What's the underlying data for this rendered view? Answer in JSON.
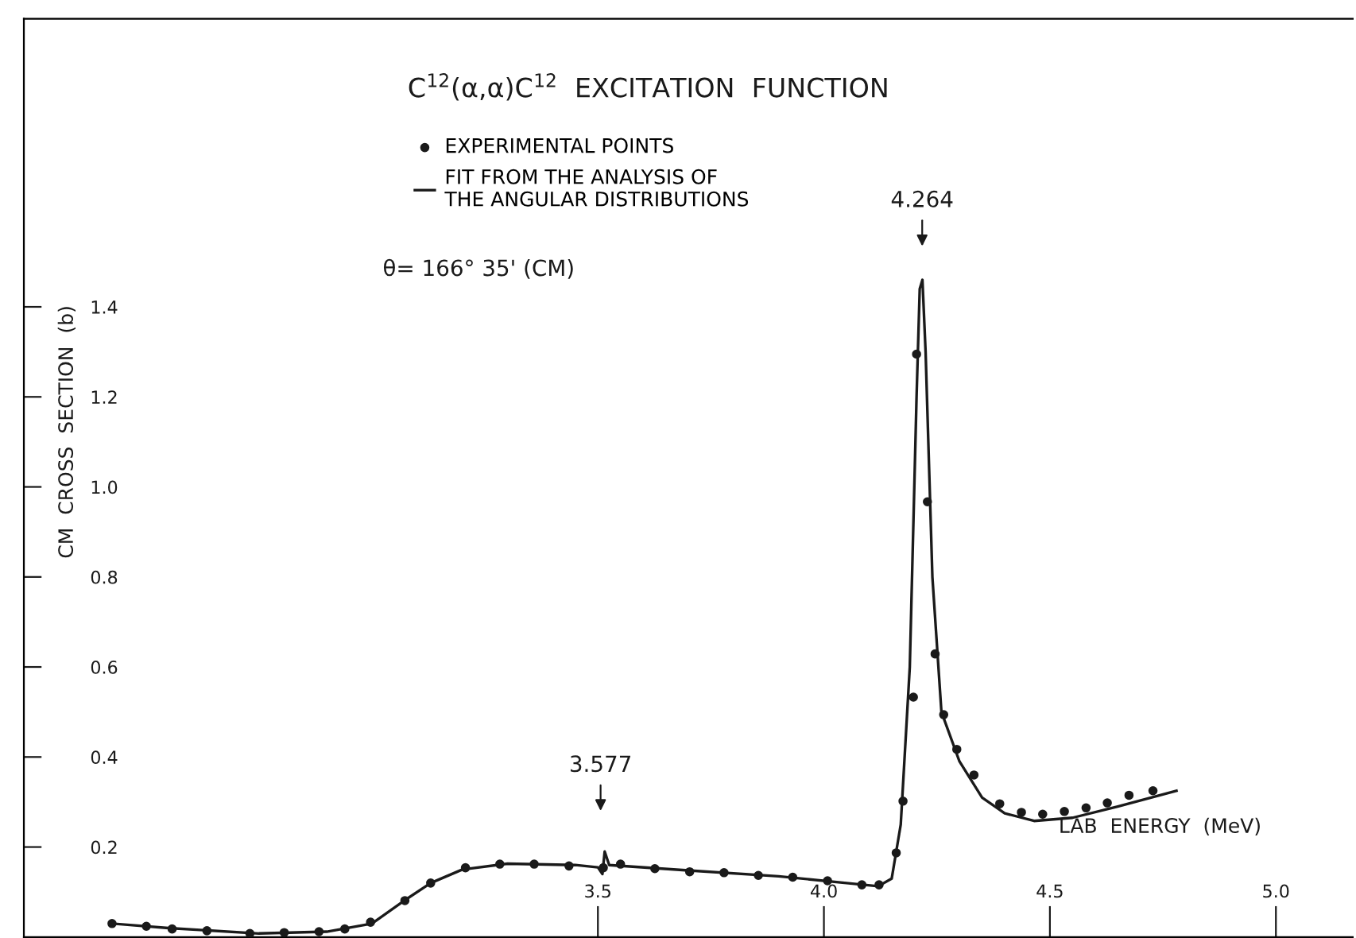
{
  "chart_data": {
    "type": "scatter",
    "title": "C$^{12}$(α,α)C$^{12}$  EXCITATION  FUNCTION",
    "xlabel": "LAB  ENERGY  (MeV)",
    "ylabel": "CM  CROSS  SECTION  (b)",
    "annotations": [
      "θ= 166° 35' (CM)",
      "3.577",
      "4.264"
    ],
    "series": [
      {
        "name": "EXPERIMENTAL POINTS",
        "marker": "circle",
        "color": "#1a1a1a",
        "x": [
          2.425,
          2.501,
          2.558,
          2.635,
          2.73,
          2.806,
          2.883,
          2.94,
          2.997,
          3.073,
          3.13,
          3.207,
          3.283,
          3.359,
          3.436,
          3.512,
          3.55,
          3.626,
          3.703,
          3.779,
          3.855,
          3.931,
          4.008,
          4.084,
          4.122,
          4.16,
          4.175,
          4.198,
          4.205,
          4.229,
          4.246,
          4.265,
          4.294,
          4.332,
          4.389,
          4.437,
          4.484,
          4.532,
          4.58,
          4.627,
          4.675,
          4.728
        ],
        "values": [
          0.03,
          0.024,
          0.018,
          0.014,
          0.008,
          0.01,
          0.012,
          0.018,
          0.033,
          0.081,
          0.12,
          0.154,
          0.162,
          0.162,
          0.158,
          0.154,
          0.162,
          0.152,
          0.145,
          0.143,
          0.137,
          0.133,
          0.125,
          0.116,
          0.116,
          0.187,
          0.302,
          0.533,
          1.295,
          0.967,
          0.629,
          0.494,
          0.417,
          0.36,
          0.296,
          0.277,
          0.273,
          0.279,
          0.287,
          0.298,
          0.315,
          0.325
        ]
      },
      {
        "name": "FIT FROM THE ANALYSIS OF\nTHE ANGULAR DISTRIBUTIONS",
        "type": "line",
        "marker": "none",
        "line_style": "solid",
        "color": "#1a1a1a",
        "x": [
          2.425,
          2.55,
          2.75,
          2.9,
          3.0,
          3.07,
          3.13,
          3.2,
          3.3,
          3.45,
          3.5,
          3.51,
          3.515,
          3.525,
          3.7,
          3.9,
          4.05,
          4.12,
          4.15,
          4.17,
          4.19,
          4.205,
          4.212,
          4.218,
          4.225,
          4.24,
          4.26,
          4.3,
          4.35,
          4.4,
          4.465,
          4.55,
          4.65,
          4.78
        ],
        "values": [
          0.03,
          0.02,
          0.008,
          0.012,
          0.03,
          0.08,
          0.12,
          0.15,
          0.163,
          0.16,
          0.155,
          0.14,
          0.19,
          0.16,
          0.148,
          0.135,
          0.12,
          0.113,
          0.13,
          0.25,
          0.6,
          1.2,
          1.44,
          1.46,
          1.3,
          0.8,
          0.5,
          0.39,
          0.31,
          0.275,
          0.258,
          0.265,
          0.29,
          0.325
        ]
      }
    ],
    "xlim": [
      2.23,
      5.17
    ],
    "ylim": [
      0,
      2.04
    ],
    "xticks": [
      3.5,
      {
        "value": 4,
        "label": "4.0"
      },
      4.5,
      {
        "value": 5,
        "label": "5.0"
      }
    ],
    "yticks": [
      0.2,
      0.4,
      0.6,
      0.8,
      {
        "value": 1,
        "label": "1.0"
      },
      1.2,
      1.4
    ],
    "legend": "top",
    "grid": false
  }
}
